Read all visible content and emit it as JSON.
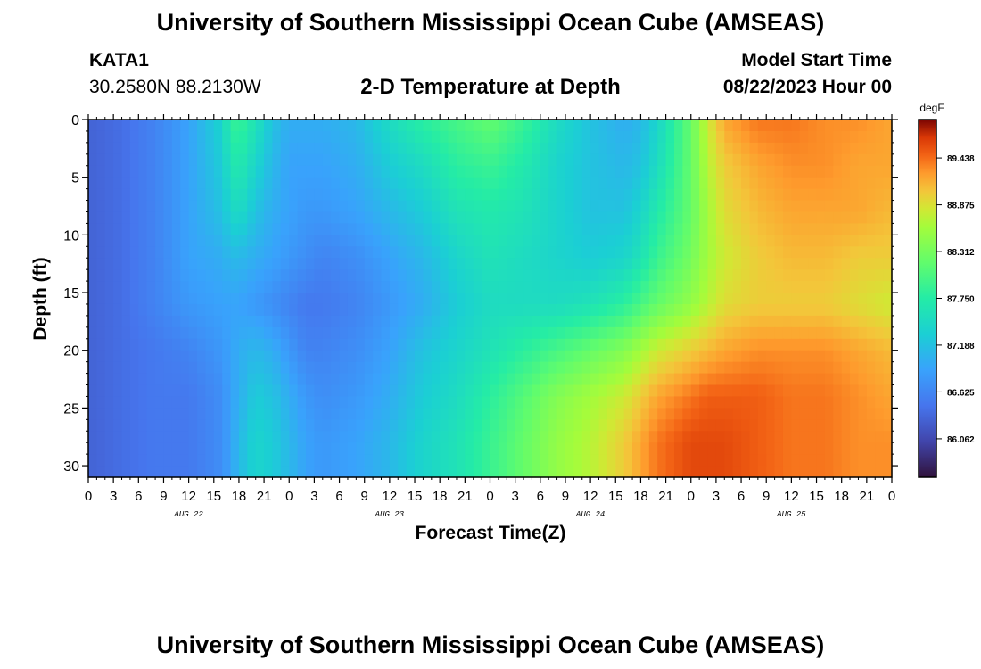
{
  "header": {
    "title": "University of Southern Mississippi Ocean Cube (AMSEAS)",
    "station_id": "KATA1",
    "coords": "30.2580N  88.2130W",
    "plot_title": "2-D Temperature at Depth",
    "model_start_label": "Model Start Time",
    "model_start_value": "08/22/2023 Hour 00"
  },
  "footer": {
    "title": "University of Southern Mississippi Ocean Cube (AMSEAS)"
  },
  "chart_data": {
    "type": "heatmap",
    "title": "2-D Temperature at Depth",
    "xlabel": "Forecast Time(Z)",
    "ylabel": "Depth (ft)",
    "x_unit": "hours since 08/22/2023 00Z",
    "xlim": [
      0,
      96
    ],
    "ylim": [
      0,
      31
    ],
    "y_inverted": true,
    "x_ticks": [
      0,
      3,
      6,
      9,
      12,
      15,
      18,
      21,
      24,
      27,
      30,
      33,
      36,
      39,
      42,
      45,
      48,
      51,
      54,
      57,
      60,
      63,
      66,
      69,
      72,
      75,
      78,
      81,
      84,
      87,
      90,
      93,
      96
    ],
    "x_tick_labels": [
      "0",
      "3",
      "6",
      "9",
      "12",
      "15",
      "18",
      "21",
      "0",
      "3",
      "6",
      "9",
      "12",
      "15",
      "18",
      "21",
      "0",
      "3",
      "6",
      "9",
      "12",
      "15",
      "18",
      "21",
      "0",
      "3",
      "6",
      "9",
      "12",
      "15",
      "18",
      "21",
      "0"
    ],
    "day_labels": [
      {
        "label": "AUG 22",
        "x": 12
      },
      {
        "label": "AUG 23",
        "x": 36
      },
      {
        "label": "AUG 24",
        "x": 60
      },
      {
        "label": "AUG 25",
        "x": 84
      }
    ],
    "y_ticks": [
      0,
      5,
      10,
      15,
      20,
      25,
      30
    ],
    "y_tick_labels": [
      "0",
      "5",
      "10",
      "15",
      "20",
      "25",
      "30"
    ],
    "colorbar": {
      "unit": "degF",
      "min": 85.6,
      "max": 89.9,
      "ticks": [
        86.062,
        86.625,
        87.188,
        87.75,
        88.312,
        88.875,
        89.438
      ],
      "tick_labels": [
        "86.062",
        "86.625",
        "87.188",
        "87.750",
        "88.312",
        "88.875",
        "89.438"
      ]
    },
    "times": [
      0,
      4,
      8,
      12,
      16,
      17,
      18,
      20,
      22,
      24,
      26,
      28,
      32,
      36,
      40,
      44,
      48,
      52,
      56,
      60,
      64,
      66,
      68,
      72,
      74,
      76,
      80,
      84,
      88,
      92,
      96
    ],
    "depths": [
      0,
      4,
      8,
      12,
      16,
      20,
      24,
      28,
      31
    ],
    "values": [
      [
        86.3,
        86.4,
        86.6,
        86.9,
        87.4,
        87.8,
        87.9,
        87.6,
        87.2,
        87.0,
        87.0,
        87.0,
        87.1,
        87.5,
        87.8,
        88.0,
        88.2,
        87.9,
        87.5,
        87.2,
        87.0,
        87.1,
        87.4,
        88.2,
        88.8,
        89.2,
        89.4,
        89.4,
        89.3,
        89.3,
        89.2
      ],
      [
        86.3,
        86.4,
        86.6,
        86.9,
        87.3,
        87.6,
        87.7,
        87.4,
        87.1,
        86.9,
        86.9,
        86.9,
        87.0,
        87.3,
        87.5,
        87.8,
        87.9,
        87.7,
        87.4,
        87.2,
        87.1,
        87.2,
        87.5,
        88.2,
        88.7,
        89.0,
        89.2,
        89.3,
        89.3,
        89.2,
        89.2
      ],
      [
        86.3,
        86.4,
        86.6,
        86.9,
        87.2,
        87.4,
        87.5,
        87.2,
        87.0,
        86.9,
        86.8,
        86.8,
        86.9,
        87.1,
        87.3,
        87.6,
        87.7,
        87.6,
        87.4,
        87.2,
        87.2,
        87.4,
        87.7,
        88.2,
        88.6,
        88.9,
        89.1,
        89.2,
        89.2,
        89.2,
        89.1
      ],
      [
        86.3,
        86.4,
        86.6,
        86.9,
        87.0,
        87.1,
        87.1,
        87.0,
        86.9,
        86.8,
        86.7,
        86.6,
        86.7,
        86.9,
        87.1,
        87.4,
        87.6,
        87.5,
        87.4,
        87.3,
        87.4,
        87.6,
        87.9,
        88.3,
        88.6,
        88.8,
        89.0,
        89.1,
        89.1,
        89.0,
        89.0
      ],
      [
        86.3,
        86.4,
        86.6,
        86.8,
        86.9,
        86.9,
        86.9,
        86.8,
        86.7,
        86.6,
        86.5,
        86.5,
        86.6,
        86.8,
        87.0,
        87.3,
        87.5,
        87.5,
        87.5,
        87.6,
        87.8,
        88.0,
        88.2,
        88.5,
        88.7,
        88.9,
        89.0,
        89.0,
        89.0,
        88.9,
        88.8
      ],
      [
        86.3,
        86.4,
        86.5,
        86.6,
        86.8,
        86.9,
        87.0,
        87.1,
        87.0,
        86.8,
        86.6,
        86.6,
        86.7,
        86.9,
        87.2,
        87.4,
        87.6,
        87.8,
        88.0,
        88.2,
        88.4,
        88.6,
        88.8,
        89.0,
        89.1,
        89.2,
        89.3,
        89.3,
        89.3,
        89.2,
        89.1
      ],
      [
        86.3,
        86.4,
        86.5,
        86.5,
        86.7,
        86.9,
        87.0,
        87.3,
        87.2,
        87.0,
        86.8,
        86.7,
        86.8,
        87.0,
        87.3,
        87.5,
        87.8,
        88.1,
        88.4,
        88.6,
        88.8,
        89.0,
        89.2,
        89.4,
        89.5,
        89.5,
        89.5,
        89.4,
        89.4,
        89.3,
        89.2
      ],
      [
        86.3,
        86.4,
        86.5,
        86.5,
        86.7,
        86.9,
        87.1,
        87.4,
        87.3,
        87.1,
        86.9,
        86.8,
        86.9,
        87.1,
        87.4,
        87.6,
        87.9,
        88.2,
        88.5,
        88.7,
        89.0,
        89.2,
        89.4,
        89.6,
        89.6,
        89.6,
        89.5,
        89.4,
        89.4,
        89.3,
        89.3
      ],
      [
        86.3,
        86.4,
        86.5,
        86.5,
        86.7,
        86.9,
        87.1,
        87.4,
        87.3,
        87.1,
        86.9,
        86.8,
        86.9,
        87.1,
        87.4,
        87.6,
        87.9,
        88.2,
        88.5,
        88.7,
        89.0,
        89.2,
        89.4,
        89.6,
        89.6,
        89.6,
        89.5,
        89.4,
        89.4,
        89.3,
        89.3
      ]
    ]
  }
}
